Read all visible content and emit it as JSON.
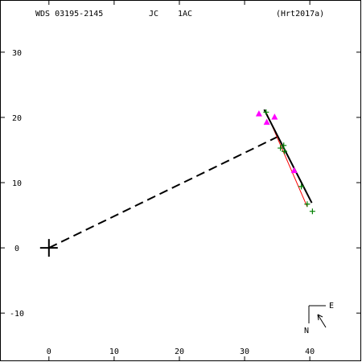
{
  "header": {
    "system": "WDS 03195-2145",
    "discoverer": "JC",
    "components": "1AC",
    "reference": "(Hrt2017a)"
  },
  "compass": {
    "north": "N",
    "east": "E"
  },
  "chart_data": {
    "type": "scatter",
    "title": "",
    "xlabel": "",
    "ylabel": "",
    "xlim": [
      -7.5,
      48
    ],
    "ylim": [
      -17.5,
      38
    ],
    "x_ticks": [
      0,
      10,
      20,
      30,
      40
    ],
    "y_ticks": [
      -10,
      0,
      10,
      20,
      30
    ],
    "primary": {
      "x": 0,
      "y": 0
    },
    "series": [
      {
        "marker": "triangle",
        "color": "#ff00ff",
        "points": [
          {
            "x": 32.2,
            "y": 20.6
          },
          {
            "x": 33.4,
            "y": 19.3
          },
          {
            "x": 34.6,
            "y": 20.1
          },
          {
            "x": 37.6,
            "y": 11.9
          }
        ]
      },
      {
        "marker": "plus",
        "color": "#008000",
        "points": [
          {
            "x": 33.3,
            "y": 20.8
          },
          {
            "x": 35.5,
            "y": 15.3
          },
          {
            "x": 36.0,
            "y": 15.7
          },
          {
            "x": 36.1,
            "y": 14.8
          },
          {
            "x": 38.7,
            "y": 9.4
          },
          {
            "x": 39.6,
            "y": 6.7
          },
          {
            "x": 40.4,
            "y": 5.6
          }
        ]
      }
    ],
    "motion_fit": {
      "color": "#000000",
      "from": {
        "x": 33.0,
        "y": 21.2
      },
      "to": {
        "x": 40.3,
        "y": 6.9
      }
    },
    "alt_fit": {
      "color": "#ff0000",
      "from": {
        "x": 33.4,
        "y": 20.6
      },
      "to": {
        "x": 39.6,
        "y": 6.3
      }
    },
    "separation_line": {
      "style": "dashed",
      "from": {
        "x": 0,
        "y": 0
      },
      "to": {
        "x": 35.0,
        "y": 17.0
      }
    }
  }
}
